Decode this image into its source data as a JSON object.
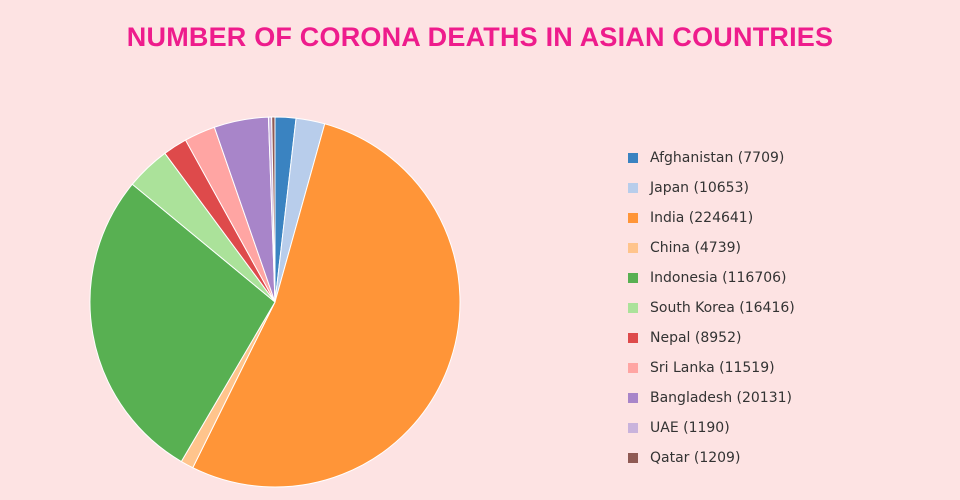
{
  "chart_data": {
    "type": "pie",
    "title": "NUMBER OF CORONA DEATHS IN ASIAN COUNTRIES",
    "legend_position": "right",
    "slices": [
      {
        "label": "Afghanistan (7709)",
        "value": 7709,
        "color": "#3a83c1"
      },
      {
        "label": "Japan (10653)",
        "value": 10653,
        "color": "#b8cdeb"
      },
      {
        "label": "India (224641)",
        "value": 224641,
        "color": "#ff9538"
      },
      {
        "label": "China (4739)",
        "value": 4739,
        "color": "#ffc48c"
      },
      {
        "label": "Indonesia (116706)",
        "value": 116706,
        "color": "#58b052"
      },
      {
        "label": "South Korea (16416)",
        "value": 16416,
        "color": "#abe29a"
      },
      {
        "label": "Nepal (8952)",
        "value": 8952,
        "color": "#de4a4b"
      },
      {
        "label": "Sri Lanka (11519)",
        "value": 11519,
        "color": "#ffa5a3"
      },
      {
        "label": "Bangladesh (20131)",
        "value": 20131,
        "color": "#a885c9"
      },
      {
        "label": "UAE (1190)",
        "value": 1190,
        "color": "#c9b3dc"
      },
      {
        "label": "Qatar (1209)",
        "value": 1209,
        "color": "#8f5a54"
      }
    ]
  }
}
